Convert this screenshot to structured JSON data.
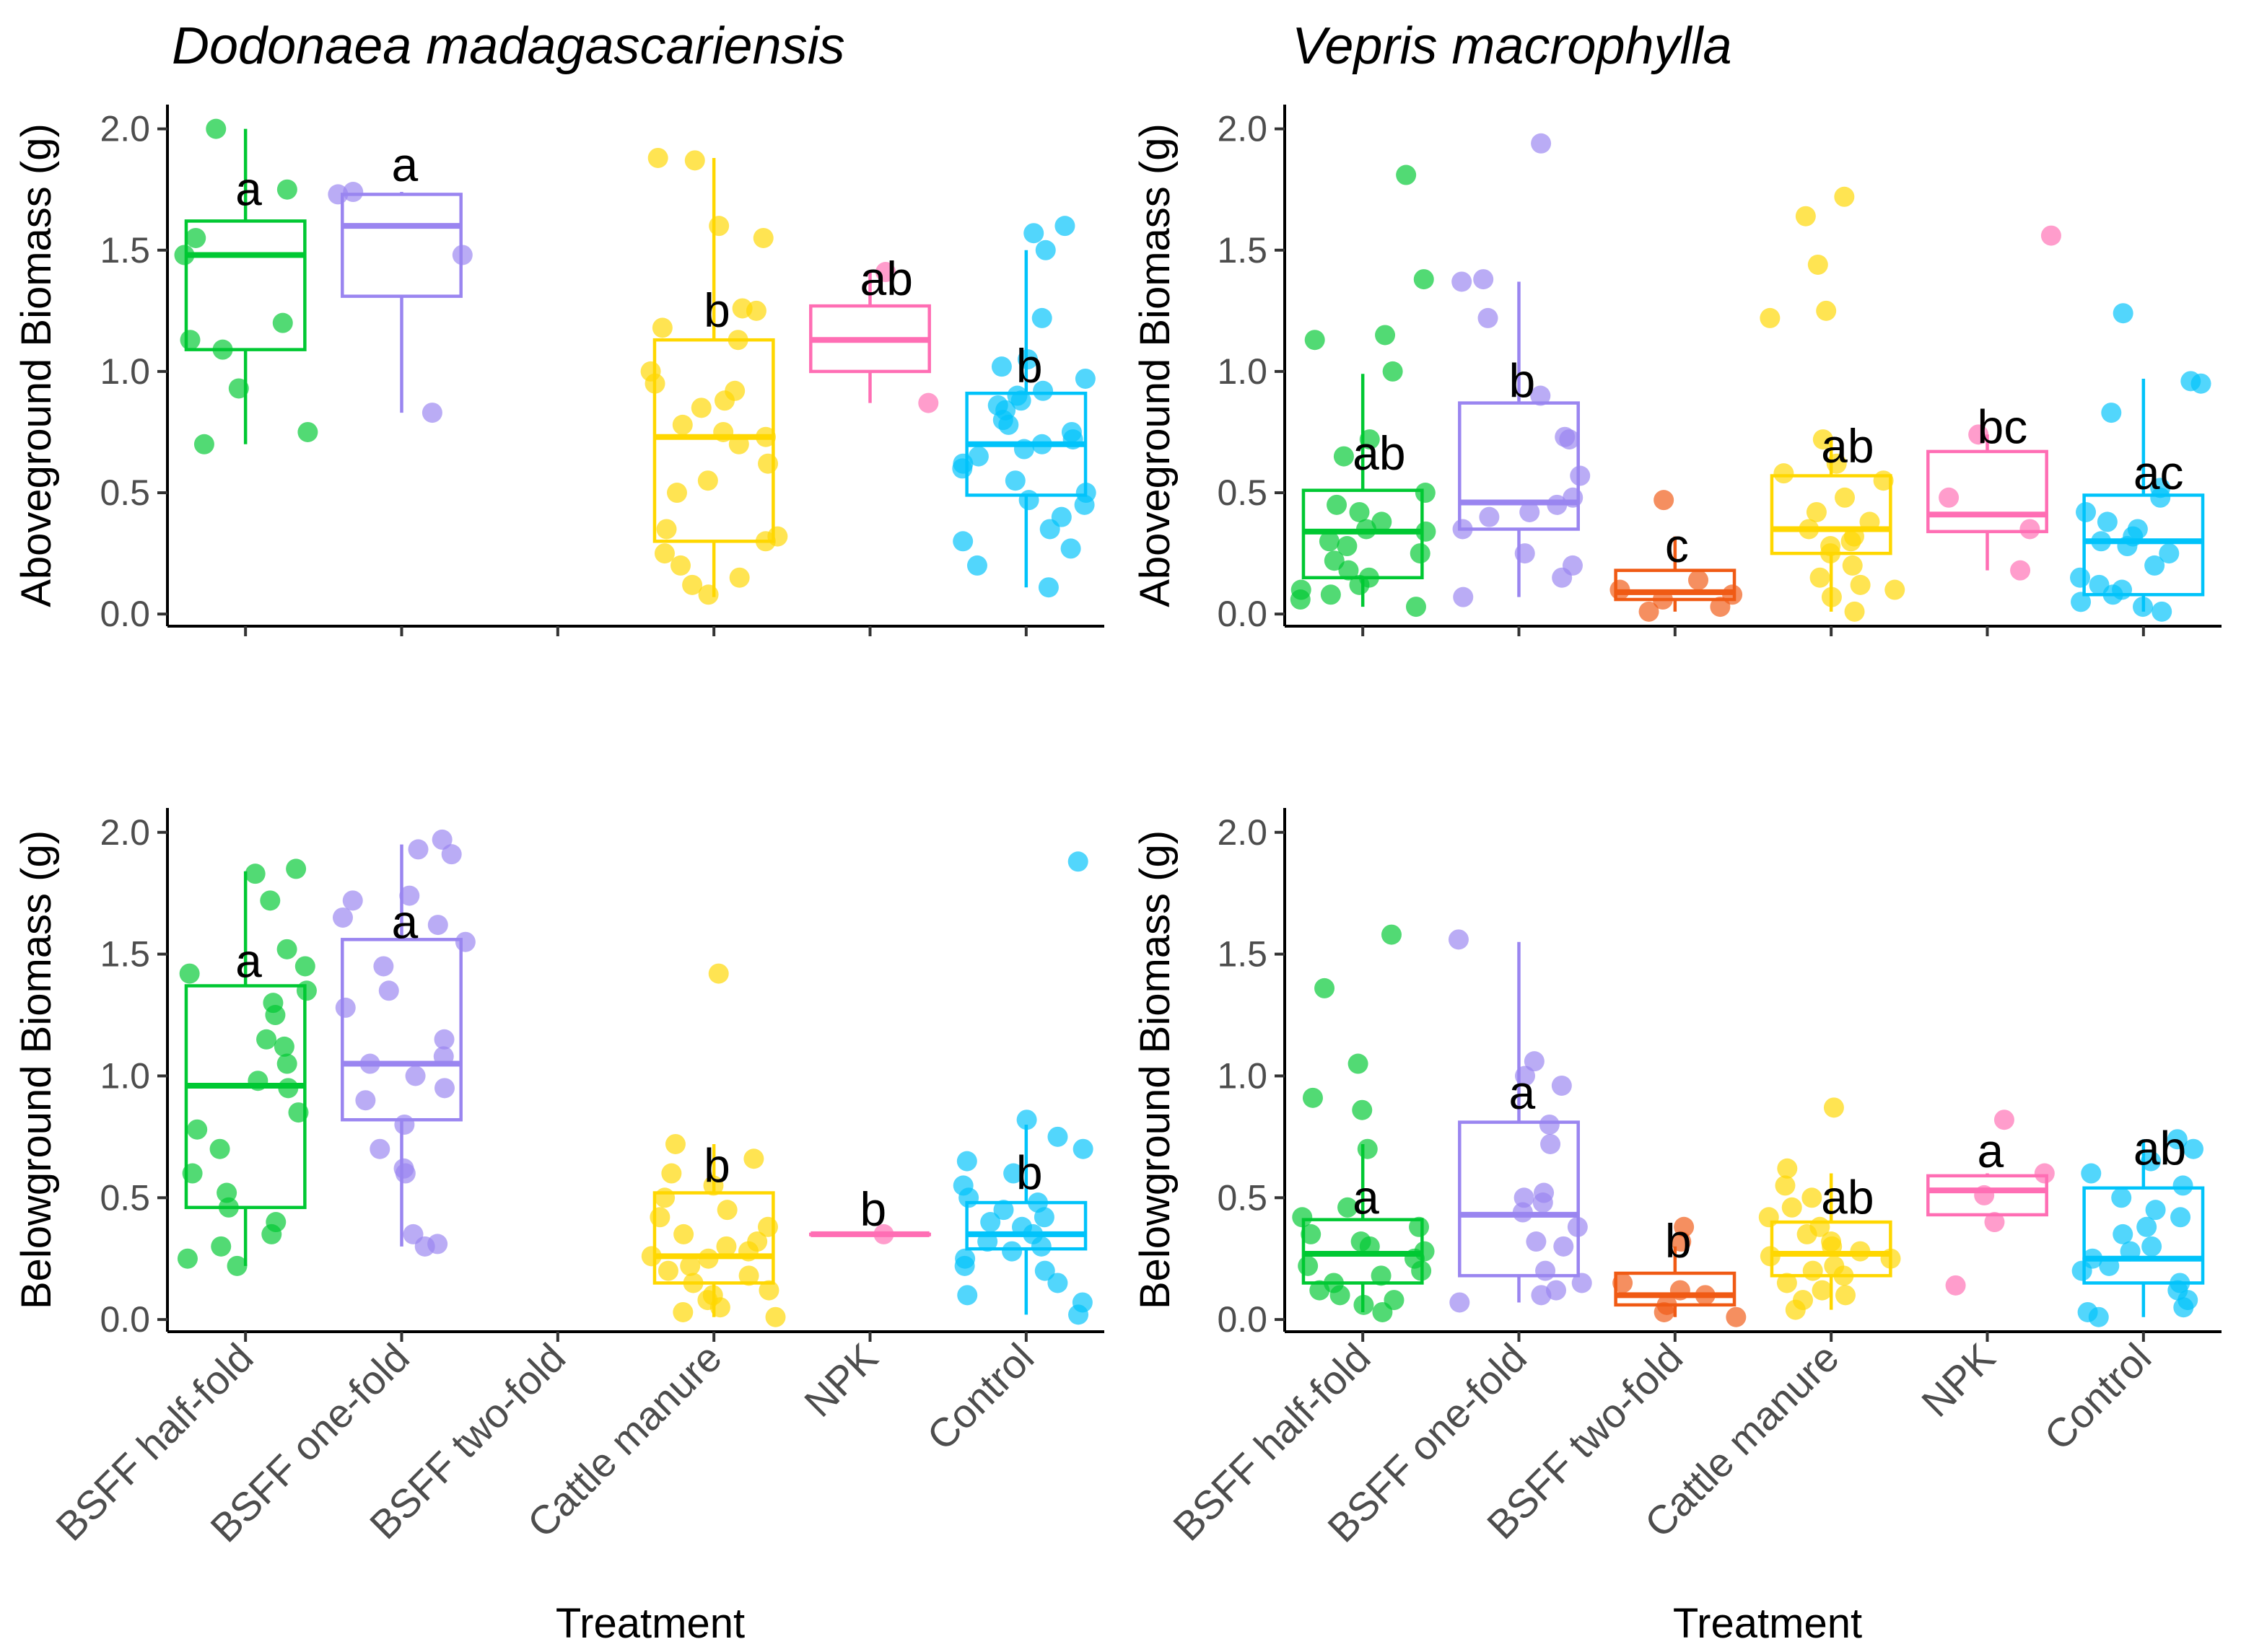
{
  "chart_data": {
    "type": "box",
    "layout": "2x2 grid of box plots with jittered points",
    "categories": [
      "BSFF half-fold",
      "BSFF one-fold",
      "BSFF two-fold",
      "Cattle manure",
      "NPK",
      "Control"
    ],
    "colors": {
      "BSFF half-fold": "#00C832",
      "BSFF one-fold": "#9A85F0",
      "BSFF two-fold": "#F05A14",
      "Cattle manure": "#FFD700",
      "NPK": "#FF6EB4",
      "Control": "#00C3FA"
    },
    "x_title": "Treatment",
    "y_ticks": [
      "0.0",
      "0.5",
      "1.0",
      "1.5",
      "2.0"
    ],
    "ylim": [
      -0.05,
      2.1
    ],
    "panels": [
      {
        "id": "dm-above",
        "species": "Dodonaea madagascariensis",
        "y_title": "Aboveground Biomass (g)",
        "show_x_labels": false,
        "groups": [
          {
            "category": "BSFF half-fold",
            "q1": 1.09,
            "median": 1.48,
            "q3": 1.62,
            "whisker_low": 0.7,
            "whisker_high": 2.0,
            "label": "a",
            "label_y": 1.75,
            "points": [
              2.0,
              1.75,
              1.55,
              1.48,
              1.2,
              1.13,
              1.09,
              0.93,
              0.75,
              0.7
            ]
          },
          {
            "category": "BSFF one-fold",
            "q1": 1.31,
            "median": 1.6,
            "q3": 1.73,
            "whisker_low": 0.83,
            "whisker_high": 1.74,
            "label": "a",
            "label_y": 1.85,
            "points": [
              1.74,
              1.73,
              1.48,
              0.83
            ]
          },
          {
            "category": "Cattle manure",
            "q1": 0.3,
            "median": 0.73,
            "q3": 1.13,
            "whisker_low": 0.07,
            "whisker_high": 1.88,
            "label": "b",
            "label_y": 1.25,
            "points": [
              1.88,
              1.87,
              1.6,
              1.55,
              1.26,
              1.25,
              1.18,
              1.13,
              1.0,
              0.95,
              0.92,
              0.88,
              0.85,
              0.78,
              0.75,
              0.73,
              0.7,
              0.62,
              0.55,
              0.5,
              0.35,
              0.32,
              0.3,
              0.25,
              0.2,
              0.15,
              0.12,
              0.08
            ]
          },
          {
            "category": "NPK",
            "q1": 1.0,
            "median": 1.13,
            "q3": 1.27,
            "whisker_low": 0.87,
            "whisker_high": 1.41,
            "label": "ab",
            "label_y": 1.38,
            "points": [
              1.41,
              0.87
            ]
          },
          {
            "category": "Control",
            "q1": 0.49,
            "median": 0.7,
            "q3": 0.91,
            "whisker_low": 0.11,
            "whisker_high": 1.5,
            "label": "b",
            "label_y": 1.02,
            "points": [
              1.6,
              1.57,
              1.5,
              1.22,
              1.05,
              1.02,
              0.97,
              0.92,
              0.9,
              0.88,
              0.86,
              0.84,
              0.8,
              0.78,
              0.75,
              0.72,
              0.7,
              0.68,
              0.65,
              0.62,
              0.6,
              0.55,
              0.5,
              0.47,
              0.45,
              0.4,
              0.35,
              0.3,
              0.27,
              0.2,
              0.11
            ]
          }
        ]
      },
      {
        "id": "vm-above",
        "species": "Vepris macrophylla",
        "y_title": "Aboveground Biomass (g)",
        "show_x_labels": false,
        "groups": [
          {
            "category": "BSFF half-fold",
            "q1": 0.15,
            "median": 0.34,
            "q3": 0.51,
            "whisker_low": 0.03,
            "whisker_high": 0.99,
            "label": "ab",
            "label_y": 0.66,
            "points": [
              1.81,
              1.38,
              1.15,
              1.13,
              1.0,
              0.72,
              0.65,
              0.5,
              0.45,
              0.42,
              0.38,
              0.35,
              0.34,
              0.3,
              0.28,
              0.25,
              0.22,
              0.18,
              0.15,
              0.12,
              0.1,
              0.08,
              0.06,
              0.03
            ]
          },
          {
            "category": "BSFF one-fold",
            "q1": 0.35,
            "median": 0.46,
            "q3": 0.87,
            "whisker_low": 0.07,
            "whisker_high": 1.37,
            "label": "b",
            "label_y": 0.96,
            "points": [
              1.94,
              1.38,
              1.37,
              1.22,
              0.9,
              0.73,
              0.72,
              0.57,
              0.48,
              0.45,
              0.42,
              0.4,
              0.35,
              0.25,
              0.2,
              0.15,
              0.07
            ]
          },
          {
            "category": "BSFF two-fold",
            "q1": 0.06,
            "median": 0.09,
            "q3": 0.18,
            "whisker_low": 0.01,
            "whisker_high": 0.32,
            "label": "c",
            "label_y": 0.28,
            "points": [
              0.47,
              0.14,
              0.1,
              0.08,
              0.06,
              0.03,
              0.01
            ]
          },
          {
            "category": "Cattle manure",
            "q1": 0.25,
            "median": 0.35,
            "q3": 0.57,
            "whisker_low": 0.01,
            "whisker_high": 0.73,
            "label": "ab",
            "label_y": 0.69,
            "points": [
              1.72,
              1.64,
              1.44,
              1.25,
              1.22,
              0.72,
              0.62,
              0.58,
              0.55,
              0.48,
              0.42,
              0.38,
              0.35,
              0.32,
              0.3,
              0.28,
              0.25,
              0.2,
              0.15,
              0.12,
              0.1,
              0.07,
              0.01
            ]
          },
          {
            "category": "NPK",
            "q1": 0.34,
            "median": 0.41,
            "q3": 0.67,
            "whisker_low": 0.18,
            "whisker_high": 0.74,
            "label": "bc",
            "label_y": 0.77,
            "points": [
              1.56,
              0.74,
              0.48,
              0.35,
              0.18
            ]
          },
          {
            "category": "Control",
            "q1": 0.08,
            "median": 0.3,
            "q3": 0.49,
            "whisker_low": 0.01,
            "whisker_high": 0.97,
            "label": "ac",
            "label_y": 0.58,
            "points": [
              1.24,
              0.96,
              0.95,
              0.83,
              0.52,
              0.48,
              0.42,
              0.38,
              0.35,
              0.32,
              0.3,
              0.28,
              0.25,
              0.2,
              0.15,
              0.12,
              0.1,
              0.08,
              0.05,
              0.03,
              0.01
            ]
          }
        ]
      },
      {
        "id": "dm-below",
        "species": "",
        "y_title": "Belowground Biomass (g)",
        "show_x_labels": true,
        "groups": [
          {
            "category": "BSFF half-fold",
            "q1": 0.46,
            "median": 0.96,
            "q3": 1.37,
            "whisker_low": 0.22,
            "whisker_high": 1.84,
            "label": "a",
            "label_y": 1.47,
            "points": [
              1.85,
              1.83,
              1.72,
              1.52,
              1.45,
              1.42,
              1.35,
              1.3,
              1.25,
              1.15,
              1.12,
              1.05,
              0.98,
              0.95,
              0.85,
              0.78,
              0.7,
              0.6,
              0.52,
              0.46,
              0.4,
              0.35,
              0.3,
              0.25,
              0.22
            ]
          },
          {
            "category": "BSFF one-fold",
            "q1": 0.82,
            "median": 1.05,
            "q3": 1.56,
            "whisker_low": 0.3,
            "whisker_high": 1.95,
            "label": "a",
            "label_y": 1.63,
            "points": [
              1.97,
              1.93,
              1.91,
              1.74,
              1.72,
              1.65,
              1.62,
              1.55,
              1.45,
              1.35,
              1.28,
              1.15,
              1.08,
              1.05,
              1.0,
              0.95,
              0.9,
              0.8,
              0.7,
              0.62,
              0.6,
              0.35,
              0.31,
              0.3
            ]
          },
          {
            "category": "Cattle manure",
            "q1": 0.15,
            "median": 0.26,
            "q3": 0.52,
            "whisker_low": 0.01,
            "whisker_high": 0.72,
            "label": "b",
            "label_y": 0.63,
            "points": [
              1.42,
              0.72,
              0.66,
              0.6,
              0.55,
              0.5,
              0.45,
              0.42,
              0.38,
              0.35,
              0.32,
              0.3,
              0.28,
              0.26,
              0.25,
              0.22,
              0.2,
              0.18,
              0.15,
              0.12,
              0.1,
              0.08,
              0.05,
              0.03,
              0.01
            ]
          },
          {
            "category": "NPK",
            "q1": 0.35,
            "median": 0.35,
            "q3": 0.35,
            "whisker_low": 0.35,
            "whisker_high": 0.35,
            "label": "b",
            "label_y": 0.45,
            "points": [
              0.35
            ]
          },
          {
            "category": "Control",
            "q1": 0.29,
            "median": 0.35,
            "q3": 0.48,
            "whisker_low": 0.02,
            "whisker_high": 0.8,
            "label": "b",
            "label_y": 0.6,
            "points": [
              1.88,
              0.82,
              0.75,
              0.7,
              0.65,
              0.6,
              0.55,
              0.5,
              0.48,
              0.45,
              0.42,
              0.4,
              0.38,
              0.35,
              0.32,
              0.3,
              0.28,
              0.25,
              0.22,
              0.2,
              0.15,
              0.1,
              0.07,
              0.02
            ]
          }
        ]
      },
      {
        "id": "vm-below",
        "species": "",
        "y_title": "Belowground Biomass (g)",
        "show_x_labels": true,
        "groups": [
          {
            "category": "BSFF half-fold",
            "q1": 0.15,
            "median": 0.27,
            "q3": 0.41,
            "whisker_low": 0.03,
            "whisker_high": 0.72,
            "label": "a",
            "label_y": 0.5,
            "points": [
              1.58,
              1.36,
              1.05,
              0.91,
              0.86,
              0.7,
              0.46,
              0.42,
              0.38,
              0.35,
              0.32,
              0.3,
              0.28,
              0.25,
              0.22,
              0.2,
              0.18,
              0.15,
              0.12,
              0.1,
              0.08,
              0.06,
              0.03
            ]
          },
          {
            "category": "BSFF one-fold",
            "q1": 0.18,
            "median": 0.43,
            "q3": 0.81,
            "whisker_low": 0.07,
            "whisker_high": 1.55,
            "label": "a",
            "label_y": 0.93,
            "points": [
              1.56,
              1.06,
              1.0,
              0.96,
              0.8,
              0.72,
              0.52,
              0.5,
              0.48,
              0.44,
              0.38,
              0.32,
              0.3,
              0.2,
              0.15,
              0.12,
              0.1,
              0.07
            ]
          },
          {
            "category": "BSFF two-fold",
            "q1": 0.06,
            "median": 0.1,
            "q3": 0.19,
            "whisker_low": 0.01,
            "whisker_high": 0.3,
            "label": "b",
            "label_y": 0.32,
            "points": [
              0.38,
              0.32,
              0.15,
              0.12,
              0.1,
              0.06,
              0.03,
              0.01
            ]
          },
          {
            "category": "Cattle manure",
            "q1": 0.18,
            "median": 0.27,
            "q3": 0.4,
            "whisker_low": 0.04,
            "whisker_high": 0.6,
            "label": "ab",
            "label_y": 0.5,
            "points": [
              0.87,
              0.62,
              0.55,
              0.5,
              0.46,
              0.42,
              0.38,
              0.35,
              0.32,
              0.3,
              0.28,
              0.26,
              0.25,
              0.22,
              0.2,
              0.18,
              0.15,
              0.12,
              0.1,
              0.08,
              0.04
            ]
          },
          {
            "category": "NPK",
            "q1": 0.43,
            "median": 0.53,
            "q3": 0.59,
            "whisker_low": 0.43,
            "whisker_high": 0.6,
            "label": "a",
            "label_y": 0.69,
            "points": [
              0.82,
              0.6,
              0.51,
              0.4,
              0.14
            ]
          },
          {
            "category": "Control",
            "q1": 0.15,
            "median": 0.25,
            "q3": 0.54,
            "whisker_low": 0.01,
            "whisker_high": 0.74,
            "label": "ab",
            "label_y": 0.7,
            "points": [
              0.74,
              0.7,
              0.65,
              0.6,
              0.55,
              0.5,
              0.45,
              0.42,
              0.38,
              0.35,
              0.3,
              0.28,
              0.25,
              0.22,
              0.2,
              0.15,
              0.12,
              0.08,
              0.05,
              0.03,
              0.01
            ]
          }
        ]
      }
    ]
  }
}
